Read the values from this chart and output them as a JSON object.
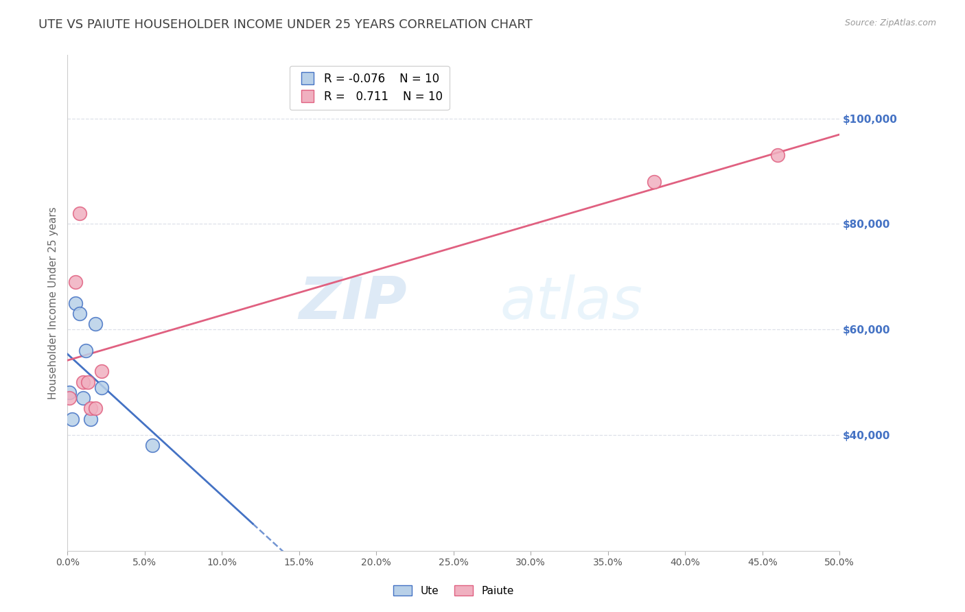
{
  "title": "UTE VS PAIUTE HOUSEHOLDER INCOME UNDER 25 YEARS CORRELATION CHART",
  "source": "Source: ZipAtlas.com",
  "ylabel": "Householder Income Under 25 years",
  "xlim": [
    0.0,
    0.5
  ],
  "ylim": [
    18000,
    112000
  ],
  "xticks": [
    0.0,
    0.05,
    0.1,
    0.15,
    0.2,
    0.25,
    0.3,
    0.35,
    0.4,
    0.45,
    0.5
  ],
  "xtick_labels": [
    "0.0%",
    "5.0%",
    "10.0%",
    "15.0%",
    "20.0%",
    "25.0%",
    "30.0%",
    "35.0%",
    "40.0%",
    "45.0%",
    "50.0%"
  ],
  "yticks_right": [
    40000,
    60000,
    80000,
    100000
  ],
  "ytick_labels_right": [
    "$40,000",
    "$60,000",
    "$80,000",
    "$100,000"
  ],
  "ute_x": [
    0.001,
    0.003,
    0.005,
    0.008,
    0.01,
    0.012,
    0.015,
    0.018,
    0.022,
    0.055
  ],
  "ute_y": [
    48000,
    43000,
    65000,
    63000,
    47000,
    56000,
    43000,
    61000,
    49000,
    38000
  ],
  "paiute_x": [
    0.001,
    0.005,
    0.008,
    0.01,
    0.013,
    0.015,
    0.018,
    0.022,
    0.38,
    0.46
  ],
  "paiute_y": [
    47000,
    69000,
    82000,
    50000,
    50000,
    45000,
    45000,
    52000,
    88000,
    93000
  ],
  "ute_R": -0.076,
  "ute_N": 10,
  "paiute_R": 0.711,
  "paiute_N": 10,
  "ute_color": "#b8d0e8",
  "paiute_color": "#f0b0c0",
  "ute_line_color": "#4472c4",
  "paiute_line_color": "#e06080",
  "background_color": "#ffffff",
  "grid_color": "#dde0e8",
  "title_color": "#404040",
  "right_axis_color": "#4472c4",
  "watermark_zip": "ZIP",
  "watermark_atlas": "atlas",
  "legend_ute_label": "Ute",
  "legend_paiute_label": "Paiute"
}
